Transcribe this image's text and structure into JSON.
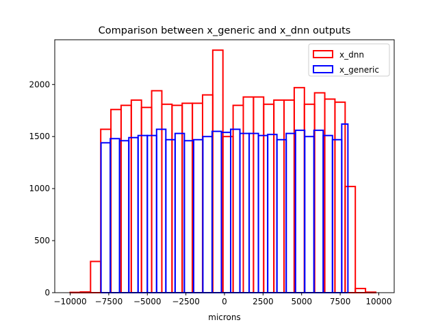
{
  "chart_data": {
    "type": "bar",
    "subtype": "step-histogram",
    "title": "Comparison between x_generic and x_dnn outputs",
    "xlabel": "microns",
    "ylabel": "",
    "xlim": [
      -11000,
      11000
    ],
    "ylim": [
      0,
      2430
    ],
    "xticks": [
      -10000,
      -7500,
      -5000,
      -2500,
      0,
      2500,
      5000,
      7500,
      10000
    ],
    "xtick_labels": [
      "−10000",
      "−7500",
      "−5000",
      "−2500",
      "0",
      "2500",
      "5000",
      "7500",
      "10000"
    ],
    "yticks": [
      0,
      500,
      1000,
      1500,
      2000
    ],
    "ytick_labels": [
      "0",
      "500",
      "1000",
      "1500",
      "2000"
    ],
    "grid": false,
    "legend_position": "top-right",
    "series": [
      {
        "name": "x_dnn",
        "color": "#ff0000",
        "bin_edges": [
          -10000,
          -9340,
          -8680,
          -8020,
          -7360,
          -6700,
          -6040,
          -5380,
          -4720,
          -4060,
          -3400,
          -2740,
          -2080,
          -1420,
          -760,
          -100,
          560,
          1220,
          1880,
          2540,
          3200,
          3860,
          4520,
          5180,
          5840,
          6500,
          7160,
          7820,
          8480,
          9140,
          9800
        ],
        "values": [
          3,
          7,
          300,
          1570,
          1760,
          1800,
          1850,
          1780,
          1940,
          1810,
          1800,
          1820,
          1820,
          1900,
          2330,
          1500,
          1800,
          1880,
          1880,
          1810,
          1850,
          1850,
          1970,
          1810,
          1920,
          1860,
          1830,
          1020,
          40,
          5
        ]
      },
      {
        "name": "x_generic",
        "color": "#0000ff",
        "bin_edges": [
          -8000,
          -7400,
          -6800,
          -6200,
          -5600,
          -5000,
          -4400,
          -3800,
          -3200,
          -2600,
          -2000,
          -1400,
          -800,
          -200,
          400,
          1000,
          1600,
          2200,
          2800,
          3400,
          4000,
          4600,
          5200,
          5800,
          6400,
          7000,
          7600,
          8000
        ],
        "values": [
          1440,
          1480,
          1460,
          1490,
          1510,
          1510,
          1570,
          1470,
          1530,
          1460,
          1470,
          1500,
          1550,
          1540,
          1570,
          1530,
          1530,
          1510,
          1520,
          1470,
          1530,
          1560,
          1500,
          1560,
          1510,
          1470,
          1620
        ]
      }
    ]
  }
}
